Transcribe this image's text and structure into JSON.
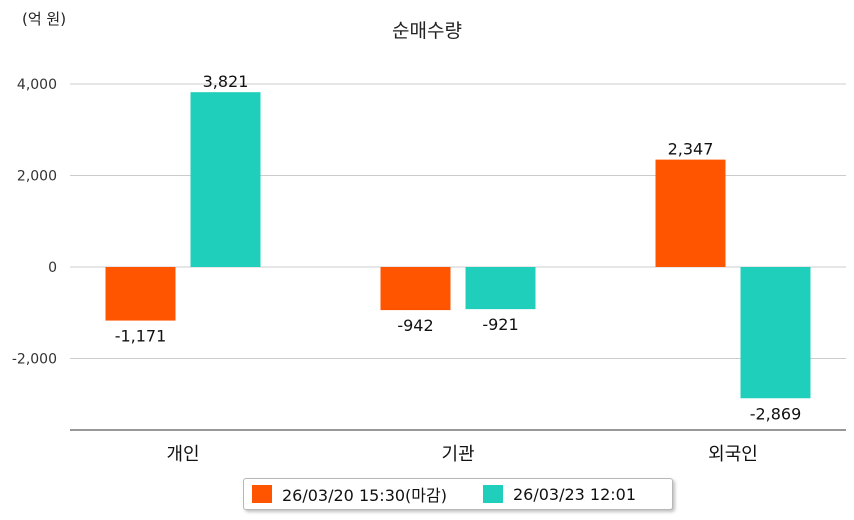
{
  "chart_data": {
    "type": "bar",
    "title": "순매수량",
    "unit_label": "(억 원)",
    "categories": [
      "개인",
      "기관",
      "외국인"
    ],
    "series": [
      {
        "name": "26/03/20 15:30(마감)",
        "color": "#ff5500",
        "values": [
          -1171,
          -942,
          2347
        ],
        "labels": [
          "-1,171",
          "-942",
          "2,347"
        ]
      },
      {
        "name": "26/03/23 12:01",
        "color": "#1fcfbb",
        "values": [
          3821,
          -921,
          -2869
        ],
        "labels": [
          "3,821",
          "-921",
          "-2,869"
        ]
      }
    ],
    "yticks": [
      4000,
      2000,
      0,
      -2000
    ],
    "ytick_labels": [
      "4,000",
      "2,000",
      "0",
      "-2,000"
    ],
    "ylim": [
      -3500,
      4400
    ],
    "grid": true,
    "legend_position": "bottom"
  }
}
